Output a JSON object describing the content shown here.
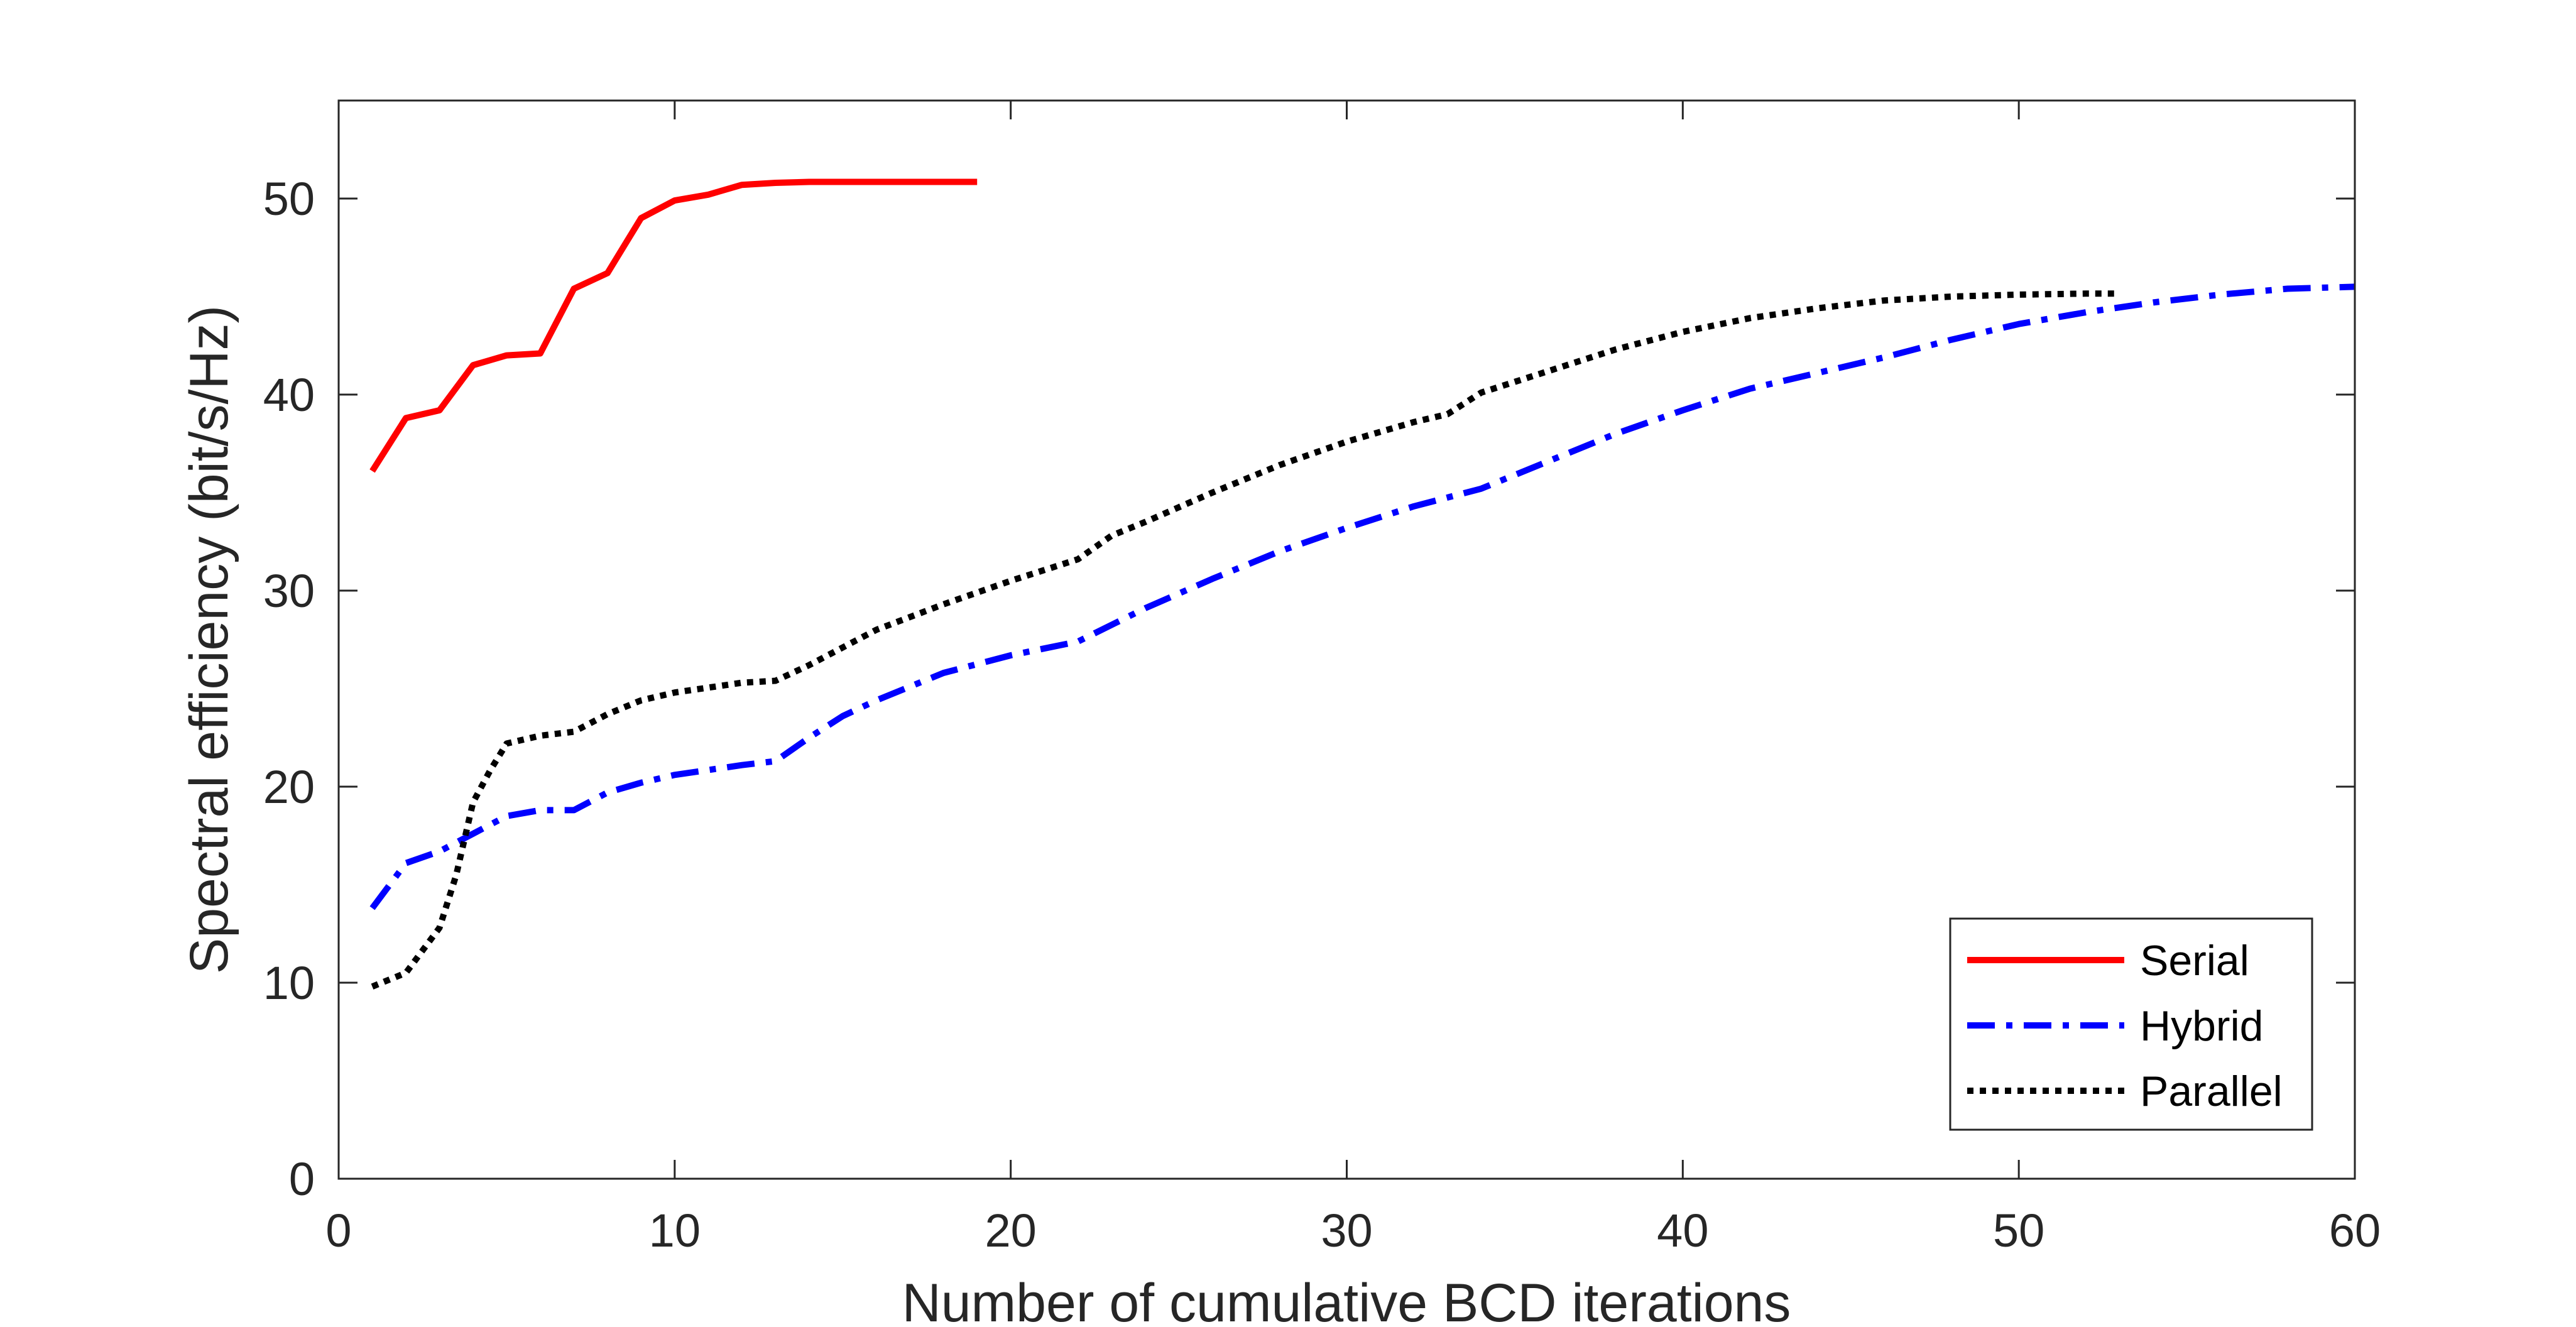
{
  "chart_data": {
    "type": "line",
    "title": "",
    "xlabel": "Number of cumulative BCD iterations",
    "ylabel": "Spectral efficiency (bit/s/Hz)",
    "xlim": [
      0,
      60
    ],
    "ylim": [
      0,
      55
    ],
    "xticks": [
      0,
      10,
      20,
      30,
      40,
      50,
      60
    ],
    "yticks": [
      0,
      10,
      20,
      30,
      40,
      50
    ],
    "grid": false,
    "legend_position": "bottom-right",
    "series": [
      {
        "name": "Serial",
        "color": "#ff0000",
        "line_style": "solid",
        "x": [
          1,
          2,
          3,
          4,
          5,
          6,
          7,
          8,
          9,
          10,
          11,
          12,
          13,
          14,
          15,
          16,
          17,
          18,
          19
        ],
        "y": [
          36.1,
          38.8,
          39.2,
          41.5,
          42.0,
          42.1,
          45.4,
          46.2,
          49.0,
          49.9,
          50.2,
          50.7,
          50.8,
          50.85,
          50.85,
          50.85,
          50.85,
          50.85,
          50.85
        ]
      },
      {
        "name": "Hybrid",
        "color": "#0000ff",
        "line_style": "dash-dot",
        "x": [
          1,
          2,
          3,
          4,
          5,
          6,
          7,
          8,
          9,
          10,
          12,
          13,
          14,
          15,
          16,
          18,
          20,
          22,
          24,
          26,
          28,
          30,
          32,
          34,
          36,
          38,
          40,
          42,
          44,
          46,
          48,
          50,
          52,
          54,
          56,
          58,
          60
        ],
        "y": [
          13.8,
          16.1,
          16.7,
          17.6,
          18.5,
          18.8,
          18.8,
          19.7,
          20.2,
          20.6,
          21.1,
          21.3,
          22.5,
          23.6,
          24.4,
          25.8,
          26.7,
          27.4,
          29.1,
          30.6,
          32.0,
          33.2,
          34.3,
          35.2,
          36.6,
          38.0,
          39.2,
          40.3,
          41.1,
          41.9,
          42.8,
          43.6,
          44.2,
          44.7,
          45.1,
          45.4,
          45.5
        ]
      },
      {
        "name": "Parallel",
        "color": "#000000",
        "line_style": "dotted",
        "x": [
          1,
          2,
          3,
          3.5,
          4,
          4.5,
          5,
          6,
          7,
          8,
          9,
          10,
          12,
          13,
          14,
          16,
          18,
          20,
          22,
          23,
          24,
          26,
          28,
          30,
          32,
          33,
          34,
          36,
          38,
          40,
          42,
          44,
          46,
          48,
          50,
          52,
          53
        ],
        "y": [
          9.8,
          10.5,
          12.8,
          15.5,
          19.2,
          20.8,
          22.2,
          22.6,
          22.8,
          23.7,
          24.4,
          24.8,
          25.3,
          25.4,
          26.2,
          28.0,
          29.3,
          30.5,
          31.6,
          32.8,
          33.5,
          35.0,
          36.4,
          37.6,
          38.6,
          39.0,
          40.1,
          41.2,
          42.3,
          43.2,
          43.9,
          44.4,
          44.8,
          45.0,
          45.1,
          45.15,
          45.15
        ]
      }
    ]
  }
}
